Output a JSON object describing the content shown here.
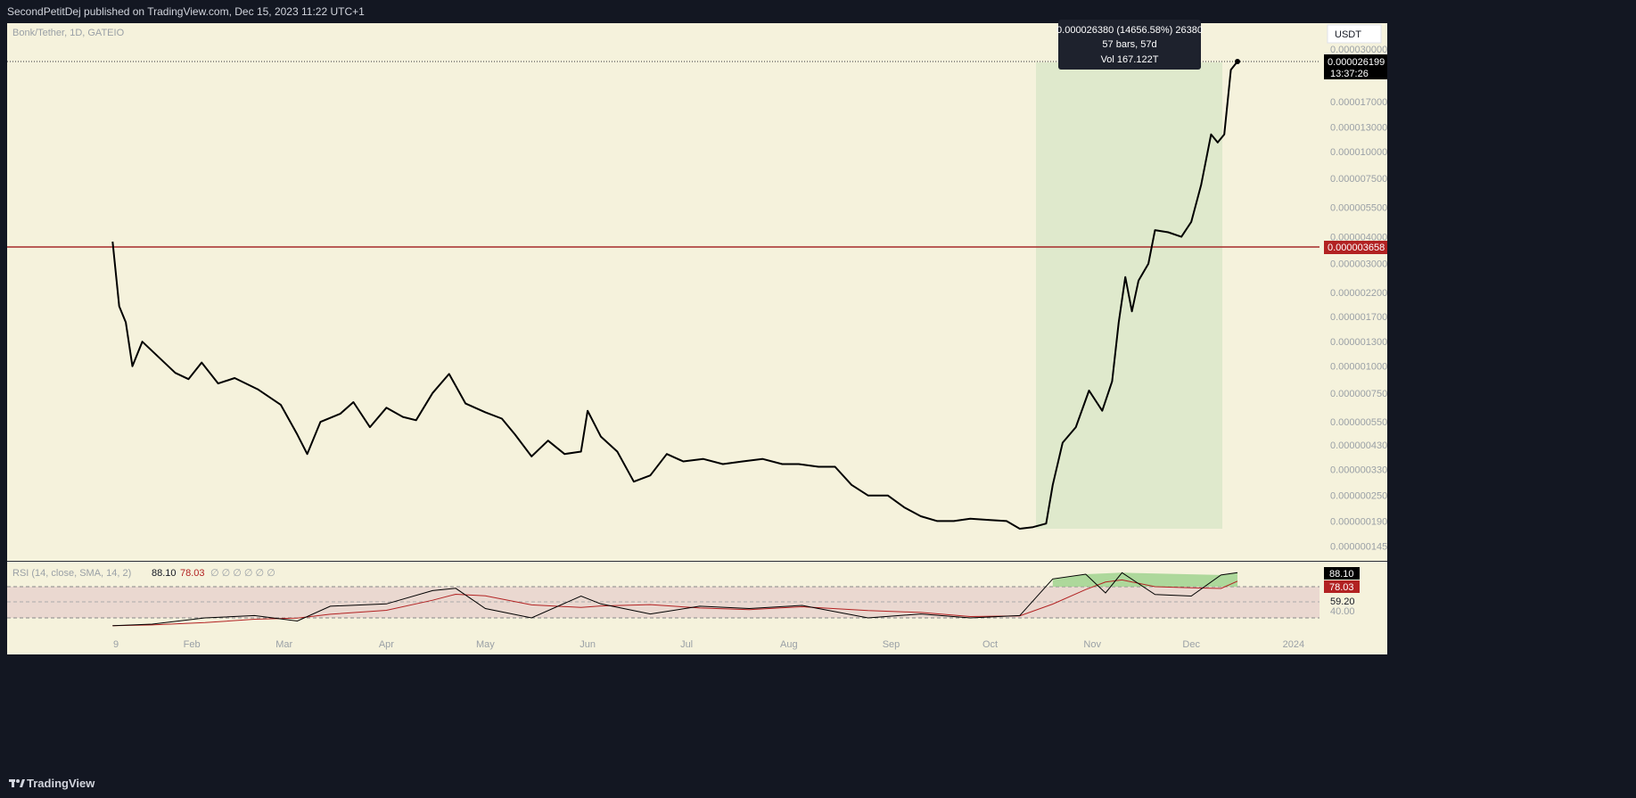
{
  "header": {
    "publisher_line": "SecondPetitDej published on TradingView.com, Dec 15, 2023 11:22 UTC+1"
  },
  "footer": {
    "brand": "TradingView",
    "logo_icon": "tradingview-logo-icon"
  },
  "symbol": {
    "title": "Bonk/Tether, 1D, GATEIO",
    "currency_button": "USDT"
  },
  "tooltip": {
    "line1": "0.000026380 (14656.58%) 26380",
    "line2": "57 bars, 57d",
    "line3": "Vol 167.122T"
  },
  "price_labels": {
    "last_price": "0.000026199",
    "countdown": "13:37:26",
    "level": "0.000003658"
  },
  "rsi": {
    "title": "RSI (14, close, SMA, 14, 2)",
    "value": "88.10",
    "ma_value": "78.03",
    "placeholders": "∅ ∅ ∅ ∅ ∅ ∅",
    "scale_labels": [
      "59.20",
      "40.00"
    ],
    "value_badge": "88.10",
    "ma_badge": "78.03"
  },
  "colors": {
    "chart_bg": "#f5f2dc",
    "frame": "#131722",
    "line": "#000000",
    "level_line": "#a52a2a",
    "range_fill": "#dfe9cc",
    "rsi_ma": "#b22222",
    "rsi_band": "#ead8d0",
    "rsi_overbought_fill": "#9bd18b"
  },
  "chart_data": {
    "type": "line",
    "title": "Bonk/Tether, 1D, GATEIO",
    "y_scale": "log",
    "price_tick_labels": [
      "0.000030000",
      "0.000026199",
      "0.000017000",
      "0.000013000",
      "0.000010000",
      "0.000007500",
      "0.000005500",
      "0.000004000",
      "0.000003000",
      "0.000002200",
      "0.000001700",
      "0.000001300",
      "0.000001000",
      "0.000000750",
      "0.000000550",
      "0.000000430",
      "0.000000330",
      "0.000000250",
      "0.000000190",
      "0.000000145"
    ],
    "x_tick_labels": [
      "9",
      "Feb",
      "Mar",
      "Apr",
      "May",
      "Jun",
      "Jul",
      "Aug",
      "Sep",
      "Oct",
      "Nov",
      "Dec",
      "2024"
    ],
    "horizontal_level": 3.658e-06,
    "range_measure": {
      "change": "0.000026380 (14656.58%) 26380",
      "bars": "57 bars, 57d",
      "volume": "Vol 167.122T"
    },
    "price_series": {
      "name": "",
      "points": [
        [
          "Jan 08",
          3.8e-06
        ],
        [
          "Jan 10",
          1.9e-06
        ],
        [
          "Jan 12",
          1.6e-06
        ],
        [
          "Jan 14",
          1e-06
        ],
        [
          "Jan 17",
          1.3e-06
        ],
        [
          "Jan 22",
          1.1e-06
        ],
        [
          "Jan 27",
          9.3e-07
        ],
        [
          "Jan 31",
          8.7e-07
        ],
        [
          "Feb 04",
          1.04e-06
        ],
        [
          "Feb 09",
          8.3e-07
        ],
        [
          "Feb 14",
          8.8e-07
        ],
        [
          "Feb 21",
          7.8e-07
        ],
        [
          "Feb 28",
          6.6e-07
        ],
        [
          "Mar 05",
          4.8e-07
        ],
        [
          "Mar 08",
          3.9e-07
        ],
        [
          "Mar 12",
          5.5e-07
        ],
        [
          "Mar 18",
          6e-07
        ],
        [
          "Mar 22",
          6.8e-07
        ],
        [
          "Mar 27",
          5.2e-07
        ],
        [
          "Apr 01",
          6.4e-07
        ],
        [
          "Apr 06",
          5.8e-07
        ],
        [
          "Apr 10",
          5.6e-07
        ],
        [
          "Apr 15",
          7.5e-07
        ],
        [
          "Apr 20",
          9.2e-07
        ],
        [
          "Apr 25",
          6.7e-07
        ],
        [
          "May 01",
          6.1e-07
        ],
        [
          "May 06",
          5.7e-07
        ],
        [
          "May 10",
          4.8e-07
        ],
        [
          "May 15",
          3.8e-07
        ],
        [
          "May 20",
          4.5e-07
        ],
        [
          "May 25",
          3.9e-07
        ],
        [
          "May 30",
          4e-07
        ],
        [
          "Jun 01",
          6.2e-07
        ],
        [
          "Jun 05",
          4.7e-07
        ],
        [
          "Jun 10",
          4e-07
        ],
        [
          "Jun 15",
          2.9e-07
        ],
        [
          "Jun 20",
          3.1e-07
        ],
        [
          "Jun 25",
          3.9e-07
        ],
        [
          "Jun 30",
          3.6e-07
        ],
        [
          "Jul 06",
          3.7e-07
        ],
        [
          "Jul 12",
          3.5e-07
        ],
        [
          "Jul 18",
          3.6e-07
        ],
        [
          "Jul 24",
          3.7e-07
        ],
        [
          "Jul 30",
          3.5e-07
        ],
        [
          "Aug 04",
          3.5e-07
        ],
        [
          "Aug 10",
          3.4e-07
        ],
        [
          "Aug 15",
          3.4e-07
        ],
        [
          "Aug 20",
          2.8e-07
        ],
        [
          "Aug 25",
          2.5e-07
        ],
        [
          "Aug 31",
          2.5e-07
        ],
        [
          "Sep 05",
          2.2e-07
        ],
        [
          "Sep 10",
          2e-07
        ],
        [
          "Sep 15",
          1.9e-07
        ],
        [
          "Sep 20",
          1.9e-07
        ],
        [
          "Sep 25",
          1.95e-07
        ],
        [
          "Oct 01",
          1.92e-07
        ],
        [
          "Oct 06",
          1.9e-07
        ],
        [
          "Oct 10",
          1.75e-07
        ],
        [
          "Oct 14",
          1.78e-07
        ],
        [
          "Oct 18",
          1.85e-07
        ],
        [
          "Oct 20",
          2.8e-07
        ],
        [
          "Oct 23",
          4.4e-07
        ],
        [
          "Oct 27",
          5.2e-07
        ],
        [
          "Oct 31",
          7.7e-07
        ],
        [
          "Nov 04",
          6.2e-07
        ],
        [
          "Nov 07",
          8.5e-07
        ],
        [
          "Nov 09",
          1.6e-06
        ],
        [
          "Nov 11",
          2.6e-06
        ],
        [
          "Nov 13",
          1.8e-06
        ],
        [
          "Nov 15",
          2.5e-06
        ],
        [
          "Nov 18",
          3e-06
        ],
        [
          "Nov 20",
          4.3e-06
        ],
        [
          "Nov 24",
          4.2e-06
        ],
        [
          "Nov 28",
          4e-06
        ],
        [
          "Dec 01",
          4.7e-06
        ],
        [
          "Dec 04",
          7e-06
        ],
        [
          "Dec 07",
          1.2e-05
        ],
        [
          "Dec 09",
          1.1e-05
        ],
        [
          "Dec 11",
          1.2e-05
        ],
        [
          "Dec 13",
          2.4e-05
        ],
        [
          "Dec 15",
          2.6199e-05
        ]
      ]
    },
    "rsi_series": {
      "name": "RSI (14, close, SMA, 14, 2)",
      "ylim": [
        0,
        100
      ],
      "bands": [
        70,
        50,
        30
      ],
      "points": [
        [
          "Jan 08",
          20
        ],
        [
          "Jan 20",
          22
        ],
        [
          "Feb 05",
          30
        ],
        [
          "Feb 20",
          33
        ],
        [
          "Mar 05",
          26
        ],
        [
          "Mar 15",
          45
        ],
        [
          "Apr 01",
          48
        ],
        [
          "Apr 15",
          65
        ],
        [
          "Apr 22",
          68
        ],
        [
          "May 01",
          42
        ],
        [
          "May 15",
          30
        ],
        [
          "May 30",
          58
        ],
        [
          "Jun 05",
          48
        ],
        [
          "Jun 20",
          35
        ],
        [
          "Jul 05",
          45
        ],
        [
          "Jul 20",
          42
        ],
        [
          "Aug 05",
          46
        ],
        [
          "Aug 25",
          30
        ],
        [
          "Sep 10",
          35
        ],
        [
          "Sep 25",
          30
        ],
        [
          "Oct 10",
          33
        ],
        [
          "Oct 20",
          80
        ],
        [
          "Oct 30",
          86
        ],
        [
          "Nov 05",
          62
        ],
        [
          "Nov 10",
          88
        ],
        [
          "Nov 20",
          60
        ],
        [
          "Dec 01",
          58
        ],
        [
          "Dec 10",
          85
        ],
        [
          "Dec 15",
          88.1
        ]
      ],
      "ma_last": 78.03
    }
  }
}
